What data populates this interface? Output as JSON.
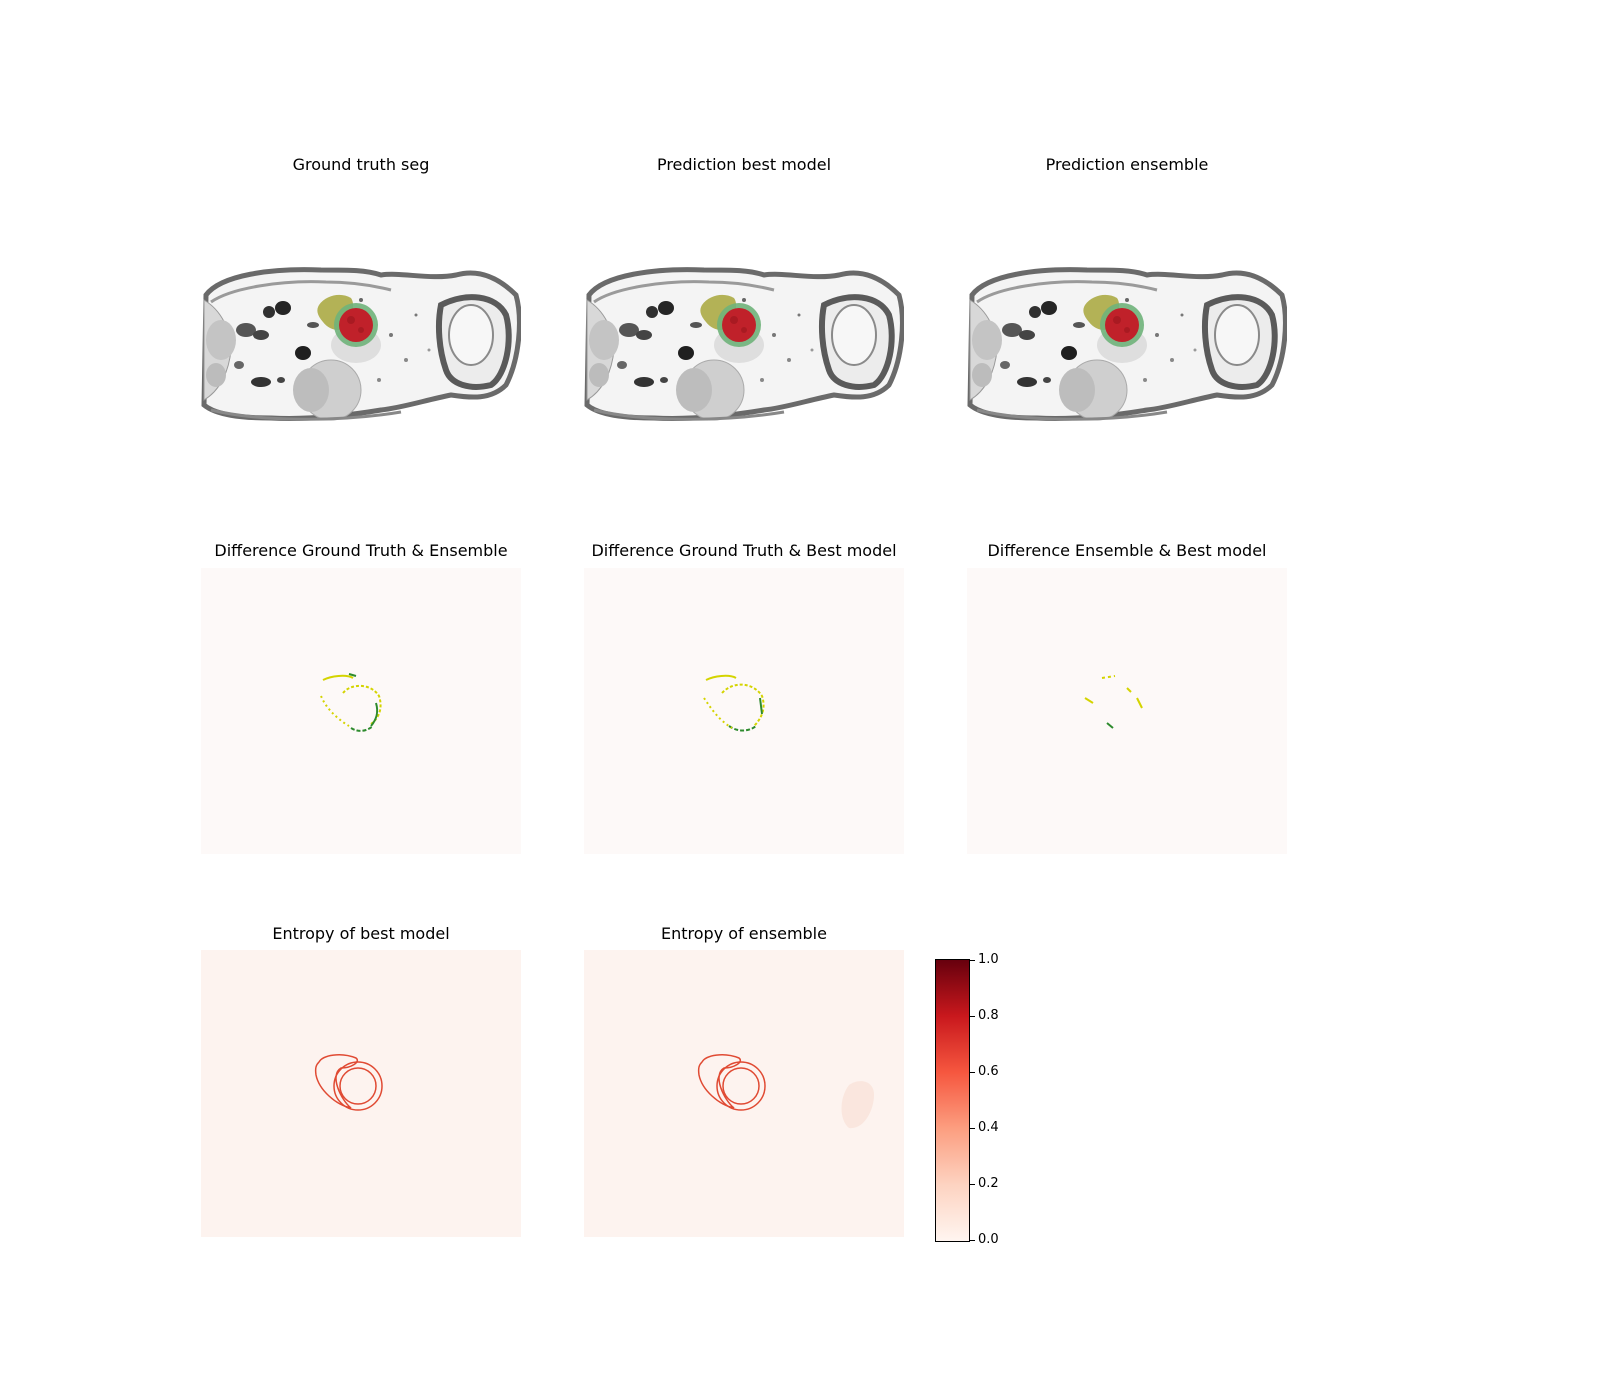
{
  "figure": {
    "titles": {
      "gt_seg": "Ground truth seg",
      "pred_best": "Prediction best model",
      "pred_ensemble": "Prediction ensemble",
      "diff_gt_ensemble": "Difference Ground Truth & Ensemble",
      "diff_gt_best": "Difference Ground Truth & Best model",
      "diff_ensemble_best": "Difference Ensemble & Best model",
      "entropy_best": "Entropy of best model",
      "entropy_ensemble": "Entropy of ensemble"
    },
    "colorbar": {
      "colormap": "Reds",
      "range": [
        0.0,
        1.0
      ],
      "ticks": [
        "0.0",
        "0.2",
        "0.4",
        "0.6",
        "0.8",
        "1.0"
      ]
    },
    "colors": {
      "tumor": "#c0212a",
      "tumor_rim": "#6fb27a",
      "organ_yellow": "#a7a63a",
      "diff_green": "#2e8b2e",
      "diff_yellow": "#d4d400",
      "entropy_line": "#e04a33",
      "entropy_bg": "#fdf3ef",
      "diff_bg": "#fdf9f8"
    }
  }
}
